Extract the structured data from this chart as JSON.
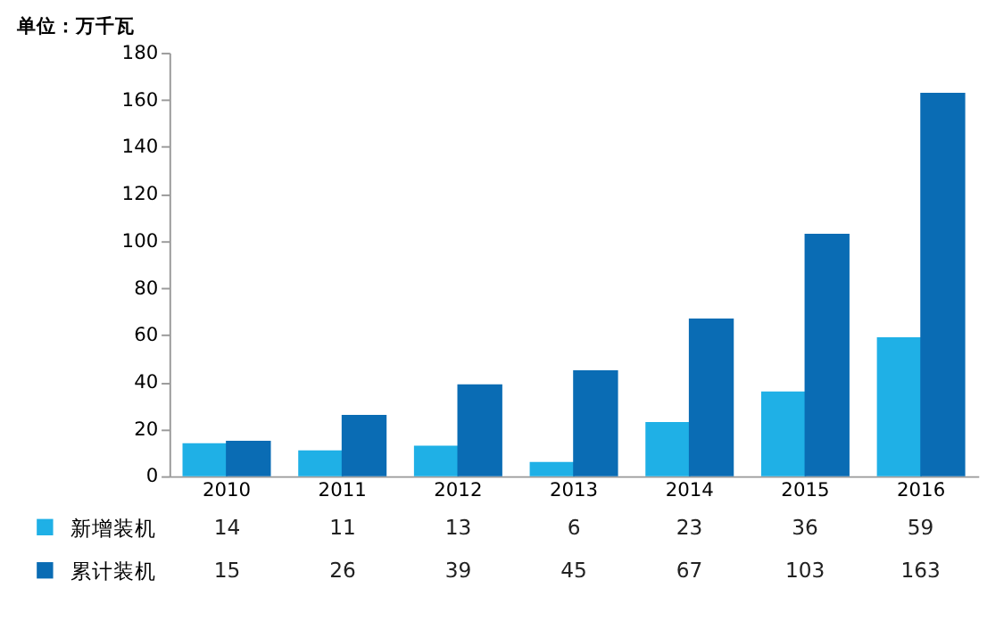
{
  "chart_data": {
    "type": "bar",
    "categories": [
      "2010",
      "2011",
      "2012",
      "2013",
      "2014",
      "2015",
      "2016"
    ],
    "series": [
      {
        "name": "新增装机",
        "color": "#1fb0e6",
        "values": [
          14,
          11,
          13,
          6,
          23,
          36,
          59
        ]
      },
      {
        "name": "累计装机",
        "color": "#0a6cb4",
        "values": [
          15,
          26,
          39,
          45,
          67,
          103,
          163
        ]
      }
    ],
    "ylim": [
      0,
      180
    ],
    "yticks": [
      0,
      20,
      40,
      60,
      80,
      100,
      120,
      140,
      160,
      180
    ],
    "grid": false,
    "legend": "bottom",
    "data_labels": true,
    "annotations": [
      "单位：万千瓦"
    ]
  }
}
